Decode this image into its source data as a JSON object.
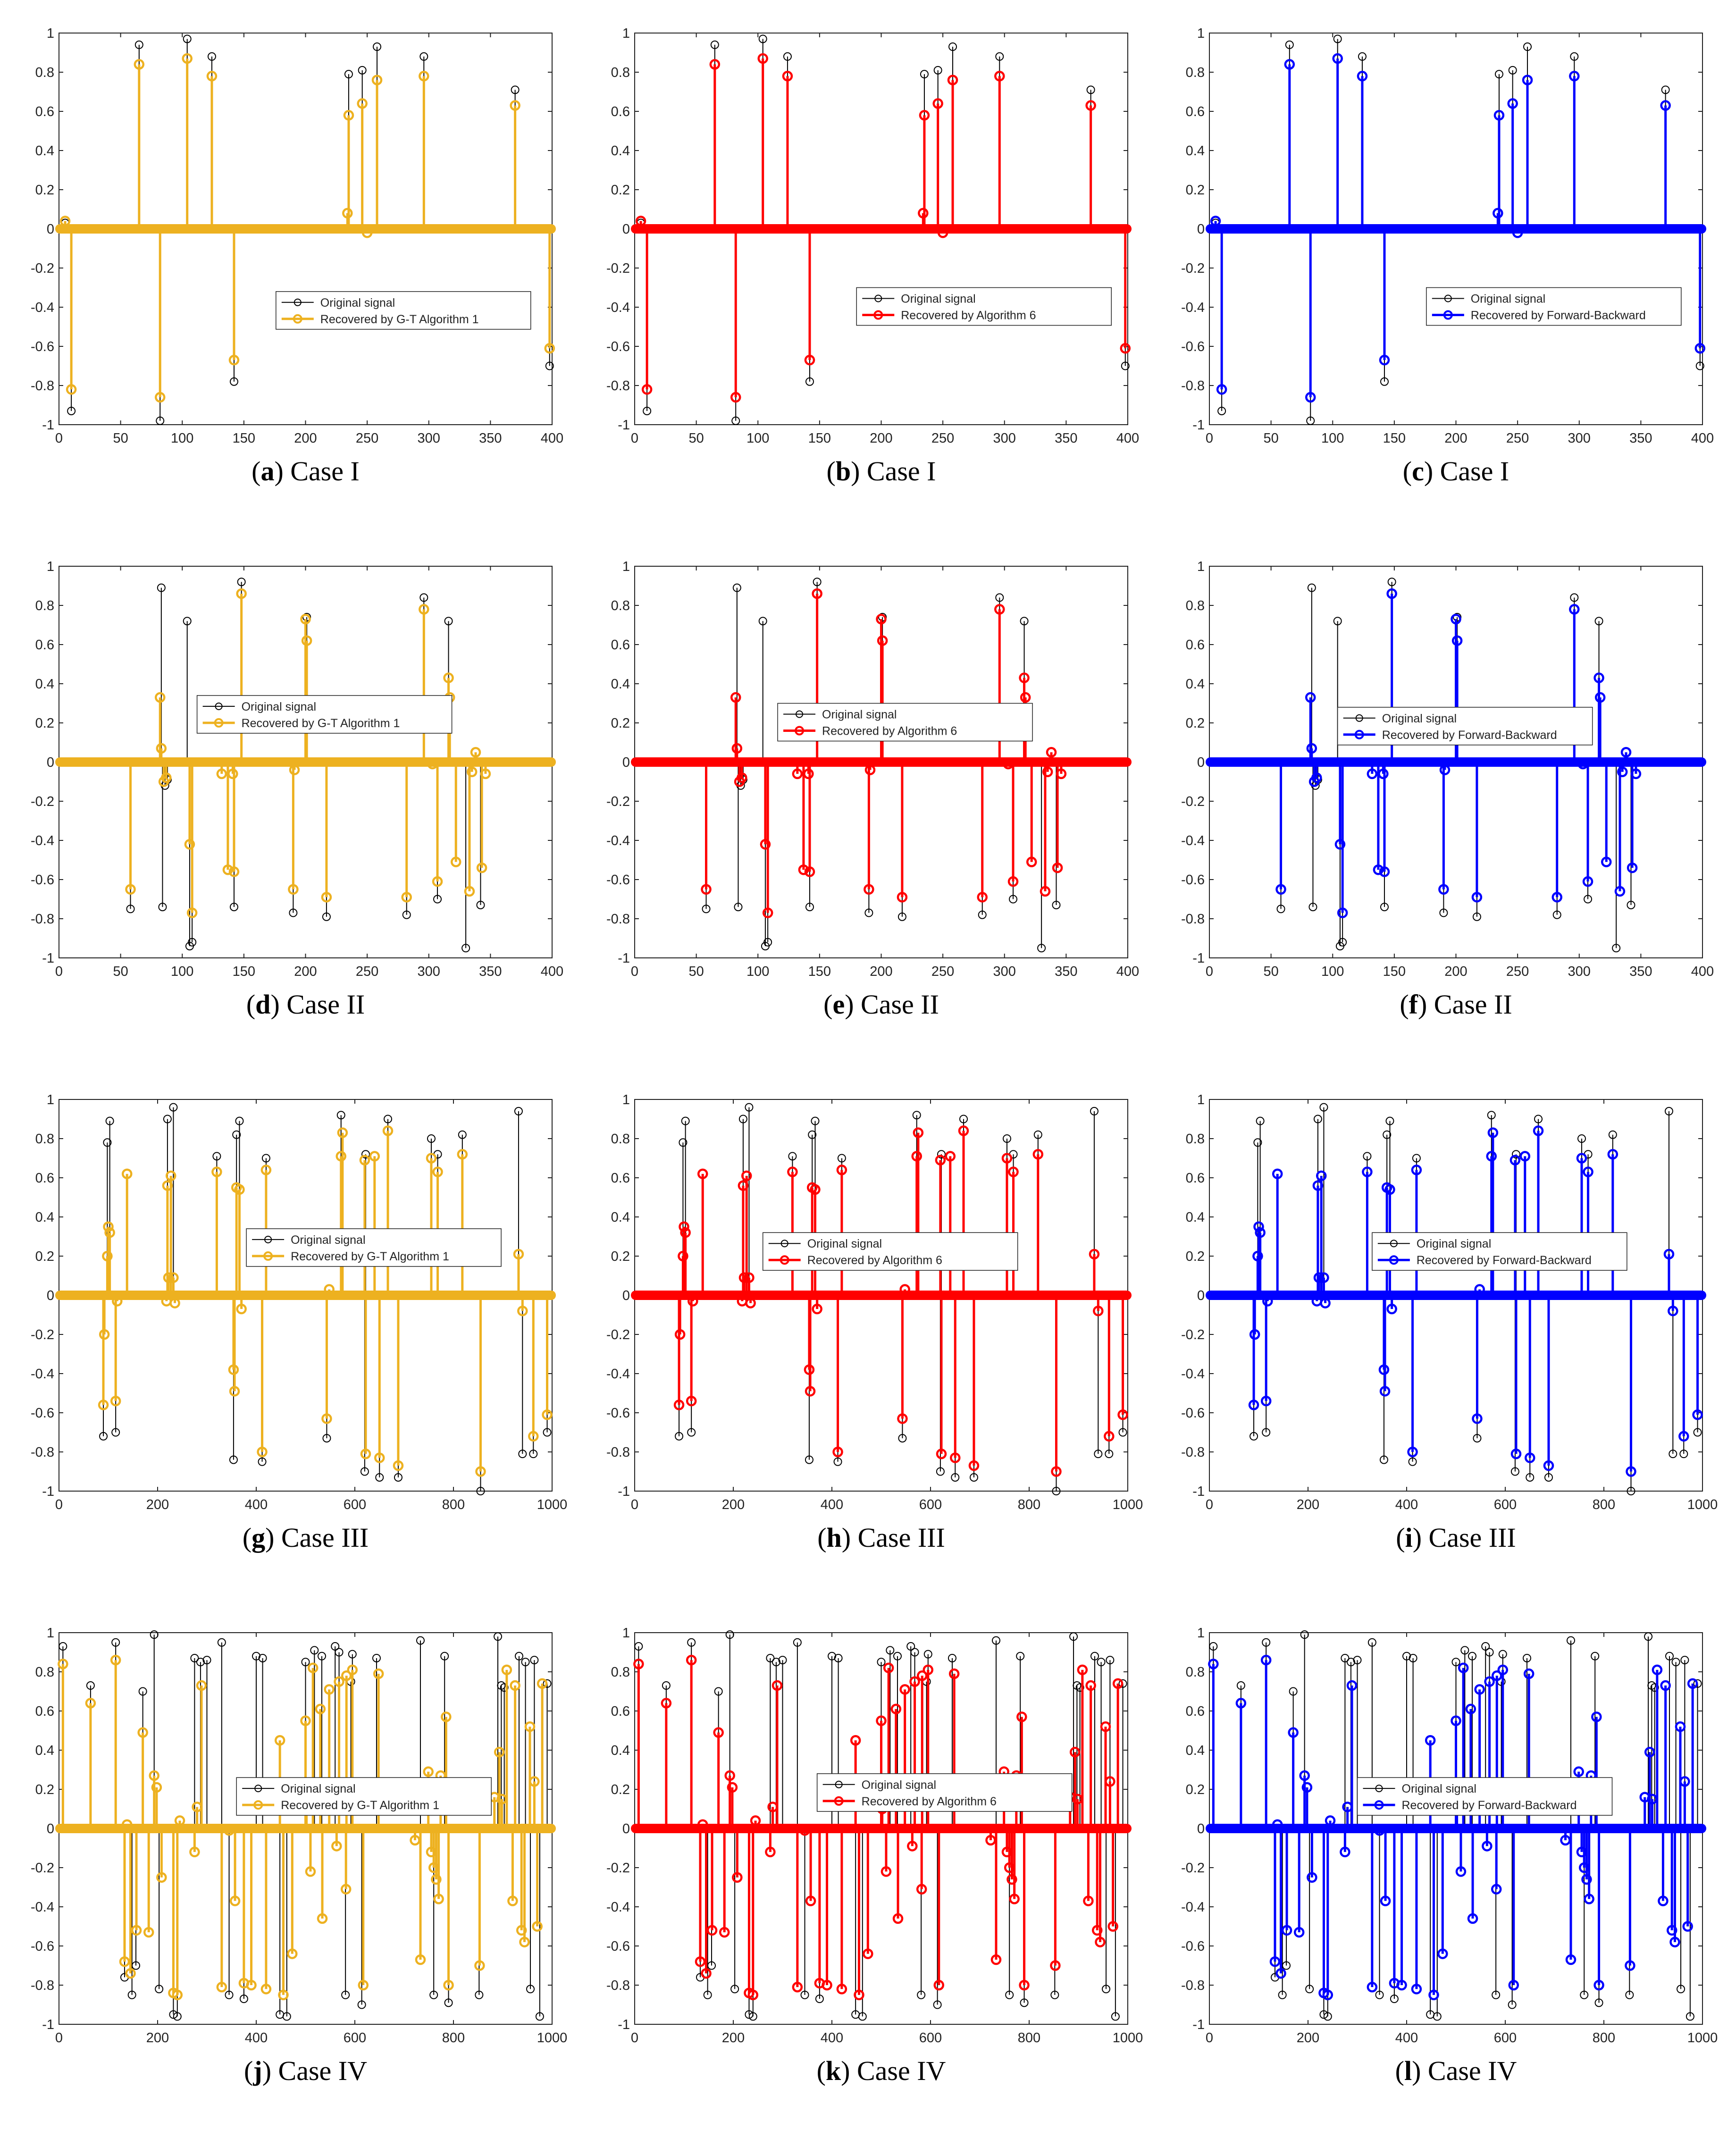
{
  "style": {
    "gt_color": "#EDB120",
    "alg6_color": "#FF0000",
    "fb_color": "#0000FF",
    "orig_color": "#000000"
  },
  "legend_labels": {
    "original": "Original signal",
    "gt": "Recovered by G-T Algorithm 1",
    "alg6": "Recovered by Algorithm 6",
    "fb": "Recovered by Forward-Backward"
  },
  "cases": [
    {
      "name": "Case I",
      "N": 400,
      "xticks": [
        0,
        50,
        100,
        150,
        200,
        250,
        300,
        350,
        400
      ],
      "original": [
        [
          5,
          0.03
        ],
        [
          10,
          -0.93
        ],
        [
          65,
          0.94
        ],
        [
          82,
          -0.98
        ],
        [
          104,
          0.97
        ],
        [
          124,
          0.88
        ],
        [
          142,
          -0.78
        ],
        [
          234,
          0.08
        ],
        [
          235,
          0.79
        ],
        [
          246,
          0.81
        ],
        [
          250,
          -0.02
        ],
        [
          258,
          0.93
        ],
        [
          296,
          0.88
        ],
        [
          370,
          0.71
        ],
        [
          398,
          -0.7
        ]
      ],
      "recovered": [
        [
          5,
          0.04
        ],
        [
          10,
          -0.82
        ],
        [
          65,
          0.84
        ],
        [
          82,
          -0.86
        ],
        [
          104,
          0.87
        ],
        [
          124,
          0.78
        ],
        [
          142,
          -0.67
        ],
        [
          234,
          0.08
        ],
        [
          235,
          0.58
        ],
        [
          246,
          0.64
        ],
        [
          250,
          -0.02
        ],
        [
          258,
          0.76
        ],
        [
          296,
          0.78
        ],
        [
          370,
          0.63
        ],
        [
          398,
          -0.61
        ]
      ]
    },
    {
      "name": "Case II",
      "N": 400,
      "xticks": [
        0,
        50,
        100,
        150,
        200,
        250,
        300,
        350,
        400
      ],
      "original": [
        [
          58,
          -0.75
        ],
        [
          83,
          0.89
        ],
        [
          84,
          -0.74
        ],
        [
          86,
          -0.12
        ],
        [
          88,
          -0.09
        ],
        [
          104,
          0.72
        ],
        [
          106,
          -0.94
        ],
        [
          108,
          -0.92
        ],
        [
          148,
          0.92
        ],
        [
          142,
          -0.74
        ],
        [
          190,
          -0.77
        ],
        [
          201,
          0.74
        ],
        [
          217,
          -0.79
        ],
        [
          282,
          -0.78
        ],
        [
          296,
          0.84
        ],
        [
          307,
          -0.7
        ],
        [
          316,
          0.72
        ],
        [
          330,
          -0.95
        ],
        [
          342,
          -0.73
        ]
      ],
      "recovered": [
        [
          58,
          -0.65
        ],
        [
          82,
          0.33
        ],
        [
          83,
          0.07
        ],
        [
          85,
          -0.1
        ],
        [
          87,
          -0.08
        ],
        [
          106,
          -0.42
        ],
        [
          108,
          -0.77
        ],
        [
          132,
          -0.06
        ],
        [
          137,
          -0.55
        ],
        [
          141,
          -0.06
        ],
        [
          142,
          -0.56
        ],
        [
          148,
          0.86
        ],
        [
          190,
          -0.65
        ],
        [
          191,
          -0.04
        ],
        [
          200,
          0.73
        ],
        [
          201,
          0.62
        ],
        [
          217,
          -0.69
        ],
        [
          282,
          -0.69
        ],
        [
          296,
          0.78
        ],
        [
          303,
          -0.01
        ],
        [
          307,
          -0.61
        ],
        [
          316,
          0.43
        ],
        [
          317,
          0.33
        ],
        [
          322,
          -0.51
        ],
        [
          333,
          -0.66
        ],
        [
          335,
          -0.05
        ],
        [
          338,
          0.05
        ],
        [
          343,
          -0.54
        ],
        [
          346,
          -0.06
        ]
      ]
    },
    {
      "name": "Case III",
      "N": 1000,
      "xticks": [
        0,
        200,
        400,
        600,
        800,
        1000
      ],
      "original": [
        [
          90,
          -0.72
        ],
        [
          98,
          0.78
        ],
        [
          103,
          0.89
        ],
        [
          115,
          -0.7
        ],
        [
          220,
          0.9
        ],
        [
          232,
          0.96
        ],
        [
          320,
          0.71
        ],
        [
          354,
          -0.84
        ],
        [
          360,
          0.82
        ],
        [
          366,
          0.89
        ],
        [
          412,
          -0.85
        ],
        [
          420,
          0.7
        ],
        [
          543,
          -0.73
        ],
        [
          572,
          0.92
        ],
        [
          620,
          -0.9
        ],
        [
          622,
          0.72
        ],
        [
          640,
          0.71
        ],
        [
          650,
          -0.93
        ],
        [
          667,
          0.9
        ],
        [
          688,
          -0.93
        ],
        [
          755,
          0.8
        ],
        [
          768,
          0.72
        ],
        [
          818,
          0.82
        ],
        [
          855,
          -1.0
        ],
        [
          932,
          0.94
        ],
        [
          940,
          -0.81
        ],
        [
          962,
          -0.81
        ],
        [
          990,
          -0.7
        ]
      ],
      "recovered": [
        [
          90,
          -0.56
        ],
        [
          92,
          -0.2
        ],
        [
          98,
          0.2
        ],
        [
          100,
          0.35
        ],
        [
          103,
          0.32
        ],
        [
          115,
          -0.54
        ],
        [
          118,
          -0.03
        ],
        [
          138,
          0.62
        ],
        [
          218,
          -0.03
        ],
        [
          220,
          0.56
        ],
        [
          222,
          0.09
        ],
        [
          227,
          0.61
        ],
        [
          232,
          0.09
        ],
        [
          235,
          -0.04
        ],
        [
          320,
          0.63
        ],
        [
          354,
          -0.38
        ],
        [
          356,
          -0.49
        ],
        [
          360,
          0.55
        ],
        [
          366,
          0.54
        ],
        [
          370,
          -0.07
        ],
        [
          412,
          -0.8
        ],
        [
          420,
          0.64
        ],
        [
          543,
          -0.63
        ],
        [
          548,
          0.03
        ],
        [
          572,
          0.71
        ],
        [
          575,
          0.83
        ],
        [
          620,
          0.69
        ],
        [
          622,
          -0.81
        ],
        [
          640,
          0.71
        ],
        [
          650,
          -0.83
        ],
        [
          667,
          0.84
        ],
        [
          688,
          -0.87
        ],
        [
          755,
          0.7
        ],
        [
          768,
          0.63
        ],
        [
          818,
          0.72
        ],
        [
          855,
          -0.9
        ],
        [
          932,
          0.21
        ],
        [
          940,
          -0.08
        ],
        [
          962,
          -0.72
        ],
        [
          990,
          -0.61
        ]
      ]
    },
    {
      "name": "Case IV",
      "N": 1000,
      "xticks": [
        0,
        200,
        400,
        600,
        800,
        1000
      ],
      "original": [
        [
          8,
          0.93
        ],
        [
          64,
          0.73
        ],
        [
          115,
          0.95
        ],
        [
          133,
          -0.76
        ],
        [
          148,
          -0.85
        ],
        [
          156,
          -0.7
        ],
        [
          170,
          0.7
        ],
        [
          193,
          0.99
        ],
        [
          203,
          -0.82
        ],
        [
          232,
          -0.95
        ],
        [
          240,
          -0.96
        ],
        [
          275,
          0.87
        ],
        [
          287,
          0.85
        ],
        [
          300,
          0.86
        ],
        [
          330,
          0.95
        ],
        [
          345,
          -0.85
        ],
        [
          375,
          -0.87
        ],
        [
          400,
          0.88
        ],
        [
          413,
          0.87
        ],
        [
          448,
          -0.95
        ],
        [
          462,
          -0.96
        ],
        [
          500,
          0.85
        ],
        [
          518,
          0.91
        ],
        [
          533,
          0.88
        ],
        [
          560,
          0.93
        ],
        [
          568,
          0.9
        ],
        [
          581,
          -0.85
        ],
        [
          592,
          0.75
        ],
        [
          595,
          0.89
        ],
        [
          614,
          -0.9
        ],
        [
          644,
          0.87
        ],
        [
          733,
          0.96
        ],
        [
          760,
          -0.85
        ],
        [
          782,
          0.88
        ],
        [
          790,
          -0.89
        ],
        [
          852,
          -0.85
        ],
        [
          890,
          0.98
        ],
        [
          897,
          0.73
        ],
        [
          903,
          0.72
        ],
        [
          933,
          0.88
        ],
        [
          946,
          0.85
        ],
        [
          956,
          -0.82
        ],
        [
          964,
          0.86
        ],
        [
          975,
          -0.96
        ],
        [
          990,
          0.74
        ]
      ],
      "recovered": [
        [
          8,
          0.84
        ],
        [
          64,
          0.64
        ],
        [
          115,
          0.86
        ],
        [
          133,
          -0.68
        ],
        [
          138,
          0.02
        ],
        [
          145,
          -0.74
        ],
        [
          157,
          -0.52
        ],
        [
          170,
          0.49
        ],
        [
          182,
          -0.53
        ],
        [
          193,
          0.27
        ],
        [
          198,
          0.21
        ],
        [
          208,
          -0.25
        ],
        [
          232,
          -0.84
        ],
        [
          240,
          -0.85
        ],
        [
          245,
          0.04
        ],
        [
          275,
          -0.12
        ],
        [
          280,
          0.11
        ],
        [
          289,
          0.73
        ],
        [
          330,
          -0.81
        ],
        [
          345,
          -0.01
        ],
        [
          357,
          -0.37
        ],
        [
          375,
          -0.79
        ],
        [
          390,
          -0.8
        ],
        [
          420,
          -0.82
        ],
        [
          448,
          0.45
        ],
        [
          455,
          -0.85
        ],
        [
          473,
          -0.64
        ],
        [
          500,
          0.55
        ],
        [
          502,
          0.1
        ],
        [
          510,
          -0.22
        ],
        [
          515,
          0.82
        ],
        [
          530,
          0.61
        ],
        [
          534,
          -0.46
        ],
        [
          548,
          0.71
        ],
        [
          563,
          -0.09
        ],
        [
          568,
          0.75
        ],
        [
          582,
          -0.31
        ],
        [
          583,
          0.78
        ],
        [
          595,
          0.81
        ],
        [
          617,
          -0.8
        ],
        [
          648,
          0.79
        ],
        [
          722,
          -0.06
        ],
        [
          733,
          -0.67
        ],
        [
          749,
          0.29
        ],
        [
          755,
          -0.12
        ],
        [
          760,
          -0.2
        ],
        [
          765,
          -0.26
        ],
        [
          770,
          -0.36
        ],
        [
          774,
          0.27
        ],
        [
          785,
          0.57
        ],
        [
          790,
          -0.8
        ],
        [
          853,
          -0.7
        ],
        [
          883,
          0.16
        ],
        [
          893,
          0.39
        ],
        [
          898,
          0.15
        ],
        [
          908,
          0.81
        ],
        [
          920,
          -0.37
        ],
        [
          925,
          0.73
        ],
        [
          938,
          -0.52
        ],
        [
          944,
          -0.58
        ],
        [
          955,
          0.52
        ],
        [
          964,
          0.24
        ],
        [
          970,
          -0.5
        ],
        [
          980,
          0.74
        ]
      ]
    }
  ],
  "panels": [
    {
      "letter": "a",
      "caption": "Case I",
      "method": "gt"
    },
    {
      "letter": "b",
      "caption": "Case I",
      "method": "alg6"
    },
    {
      "letter": "c",
      "caption": "Case I",
      "method": "fb"
    },
    {
      "letter": "d",
      "caption": "Case II",
      "method": "gt"
    },
    {
      "letter": "e",
      "caption": "Case II",
      "method": "alg6"
    },
    {
      "letter": "f",
      "caption": "Case II",
      "method": "fb"
    },
    {
      "letter": "g",
      "caption": "Case III",
      "method": "gt"
    },
    {
      "letter": "h",
      "caption": "Case III",
      "method": "alg6"
    },
    {
      "letter": "i",
      "caption": "Case III",
      "method": "fb"
    },
    {
      "letter": "j",
      "caption": "Case IV",
      "method": "gt"
    },
    {
      "letter": "k",
      "caption": "Case IV",
      "method": "alg6"
    },
    {
      "letter": "l",
      "caption": "Case IV",
      "method": "fb"
    }
  ],
  "yticks": [
    "1",
    "0.8",
    "0.6",
    "0.4",
    "0.2",
    "0",
    "-0.2",
    "-0.4",
    "-0.6",
    "-0.8",
    "-1"
  ],
  "chart_data": {
    "type": "stem",
    "title": "",
    "ylim": [
      -1,
      1
    ],
    "series_names": [
      "Original signal",
      "Recovered by G-T Algorithm 1",
      "Recovered by Algorithm 6",
      "Recovered by Forward-Backward"
    ],
    "subplots": "12 stem plots: rows = Case I–IV, columns = G-T Algorithm 1 / Algorithm 6 / Forward-Backward; data in cases[]"
  }
}
